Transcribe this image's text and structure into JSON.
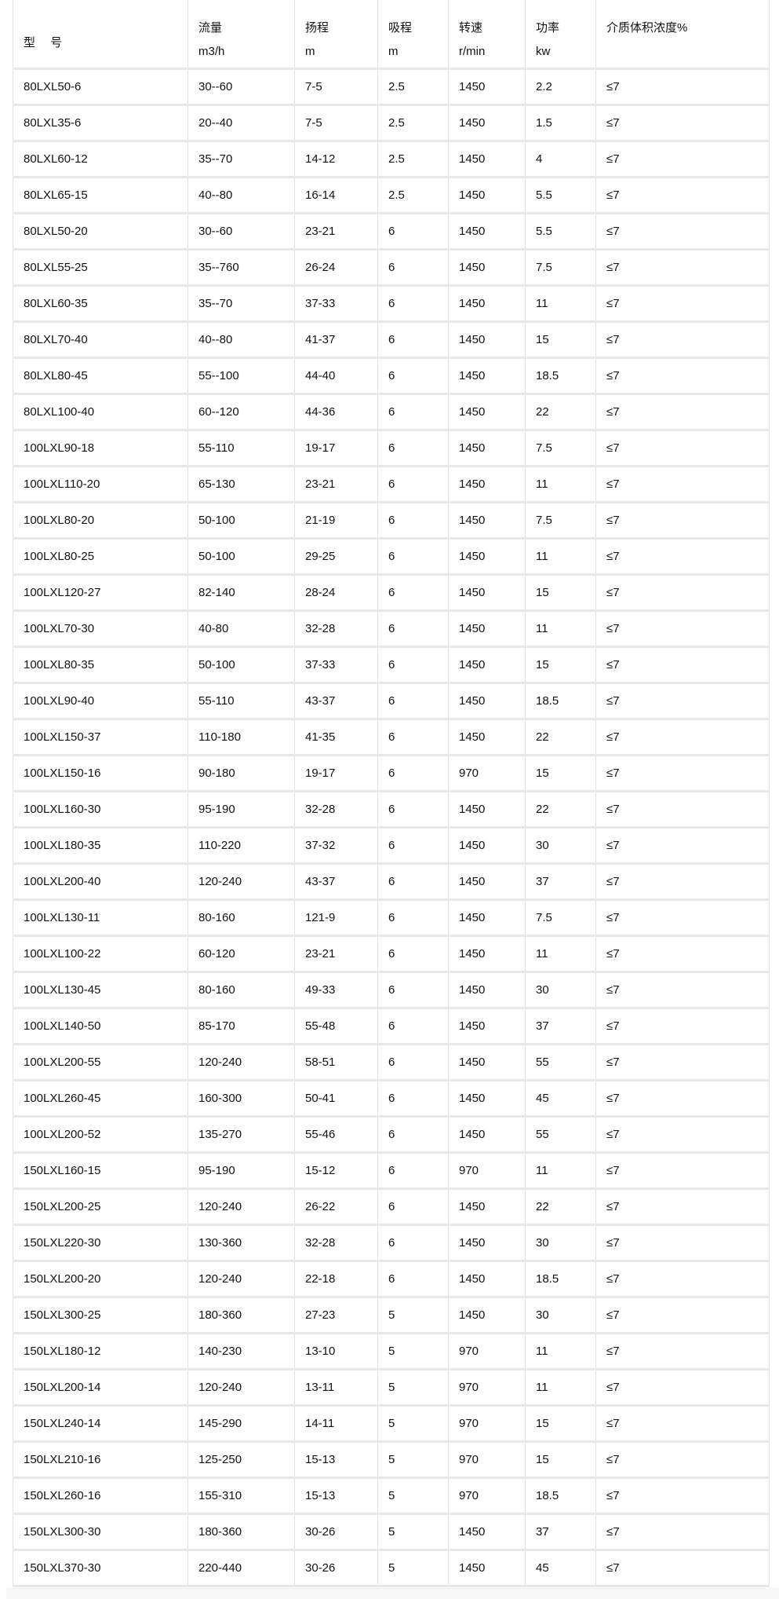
{
  "header": {
    "model": "型　 号",
    "columns": [
      {
        "name": "流量",
        "unit": "m3/h"
      },
      {
        "name": "扬程",
        "unit": "m"
      },
      {
        "name": "吸程",
        "unit": "m"
      },
      {
        "name": "转速",
        "unit": "r/min"
      },
      {
        "name": "功率",
        "unit": "kw"
      },
      {
        "name": "介质体积浓度%",
        "unit": ""
      }
    ]
  },
  "rows": [
    [
      "80LXL50-6",
      "30--60",
      "7-5",
      "2.5",
      "1450",
      "2.2",
      "≤7"
    ],
    [
      "80LXL35-6",
      "20--40",
      "7-5",
      "2.5",
      "1450",
      "1.5",
      "≤7"
    ],
    [
      "80LXL60-12",
      "35--70",
      "14-12",
      "2.5",
      "1450",
      "4",
      "≤7"
    ],
    [
      "80LXL65-15",
      "40--80",
      "16-14",
      "2.5",
      "1450",
      "5.5",
      "≤7"
    ],
    [
      "80LXL50-20",
      "30--60",
      "23-21",
      "6",
      "1450",
      "5.5",
      "≤7"
    ],
    [
      "80LXL55-25",
      "35--760",
      "26-24",
      "6",
      "1450",
      "7.5",
      "≤7"
    ],
    [
      "80LXL60-35",
      "35--70",
      "37-33",
      "6",
      "1450",
      "11",
      "≤7"
    ],
    [
      "80LXL70-40",
      "40--80",
      "41-37",
      "6",
      "1450",
      "15",
      "≤7"
    ],
    [
      "80LXL80-45",
      "55--100",
      "44-40",
      "6",
      "1450",
      "18.5",
      "≤7"
    ],
    [
      "80LXL100-40",
      "60--120",
      "44-36",
      "6",
      "1450",
      "22",
      "≤7"
    ],
    [
      "100LXL90-18",
      "55-110",
      "19-17",
      "6",
      "1450",
      "7.5",
      "≤7"
    ],
    [
      "100LXL110-20",
      "65-130",
      "23-21",
      "6",
      "1450",
      "11",
      "≤7"
    ],
    [
      "100LXL80-20",
      "50-100",
      "21-19",
      "6",
      "1450",
      "7.5",
      "≤7"
    ],
    [
      "100LXL80-25",
      "50-100",
      "29-25",
      "6",
      "1450",
      "11",
      "≤7"
    ],
    [
      "100LXL120-27",
      "82-140",
      "28-24",
      "6",
      "1450",
      "15",
      "≤7"
    ],
    [
      "100LXL70-30",
      "40-80",
      "32-28",
      "6",
      "1450",
      "11",
      "≤7"
    ],
    [
      "100LXL80-35",
      "50-100",
      "37-33",
      "6",
      "1450",
      "15",
      "≤7"
    ],
    [
      "100LXL90-40",
      "55-110",
      "43-37",
      "6",
      "1450",
      "18.5",
      "≤7"
    ],
    [
      "100LXL150-37",
      "110-180",
      "41-35",
      "6",
      "1450",
      "22",
      "≤7"
    ],
    [
      "100LXL150-16",
      "90-180",
      "19-17",
      "6",
      "970",
      "15",
      "≤7"
    ],
    [
      "100LXL160-30",
      "95-190",
      "32-28",
      "6",
      "1450",
      "22",
      "≤7"
    ],
    [
      "100LXL180-35",
      "110-220",
      "37-32",
      "6",
      "1450",
      "30",
      "≤7"
    ],
    [
      "100LXL200-40",
      "120-240",
      "43-37",
      "6",
      "1450",
      "37",
      "≤7"
    ],
    [
      "100LXL130-11",
      "80-160",
      "121-9",
      "6",
      "1450",
      "7.5",
      "≤7"
    ],
    [
      "100LXL100-22",
      "60-120",
      "23-21",
      "6",
      "1450",
      "11",
      "≤7"
    ],
    [
      "100LXL130-45",
      "80-160",
      "49-33",
      "6",
      "1450",
      "30",
      "≤7"
    ],
    [
      "100LXL140-50",
      "85-170",
      "55-48",
      "6",
      "1450",
      "37",
      "≤7"
    ],
    [
      "100LXL200-55",
      "120-240",
      "58-51",
      "6",
      "1450",
      "55",
      "≤7"
    ],
    [
      "100LXL260-45",
      "160-300",
      "50-41",
      "6",
      "1450",
      "45",
      "≤7"
    ],
    [
      "100LXL200-52",
      "135-270",
      "55-46",
      "6",
      "1450",
      "55",
      "≤7"
    ],
    [
      "150LXL160-15",
      "95-190",
      "15-12",
      "6",
      "970",
      "11",
      "≤7"
    ],
    [
      "150LXL200-25",
      "120-240",
      "26-22",
      "6",
      "1450",
      "22",
      "≤7"
    ],
    [
      "150LXL220-30",
      "130-360",
      "32-28",
      "6",
      "1450",
      "30",
      "≤7"
    ],
    [
      "150LXL200-20",
      "120-240",
      "22-18",
      "6",
      "1450",
      "18.5",
      "≤7"
    ],
    [
      "150LXL300-25",
      "180-360",
      "27-23",
      "5",
      "1450",
      "30",
      "≤7"
    ],
    [
      "150LXL180-12",
      "140-230",
      "13-10",
      "5",
      "970",
      "11",
      "≤7"
    ],
    [
      "150LXL200-14",
      "120-240",
      "13-11",
      "5",
      "970",
      "11",
      "≤7"
    ],
    [
      "150LXL240-14",
      "145-290",
      "14-11",
      "5",
      "970",
      "15",
      "≤7"
    ],
    [
      "150LXL210-16",
      "125-250",
      "15-13",
      "5",
      "970",
      "15",
      "≤7"
    ],
    [
      "150LXL260-16",
      "155-310",
      "15-13",
      "5",
      "970",
      "18.5",
      "≤7"
    ],
    [
      "150LXL300-30",
      "180-360",
      "30-26",
      "5",
      "1450",
      "37",
      "≤7"
    ],
    [
      "150LXL370-30",
      "220-440",
      "30-26",
      "5",
      "1450",
      "45",
      "≤7"
    ]
  ]
}
